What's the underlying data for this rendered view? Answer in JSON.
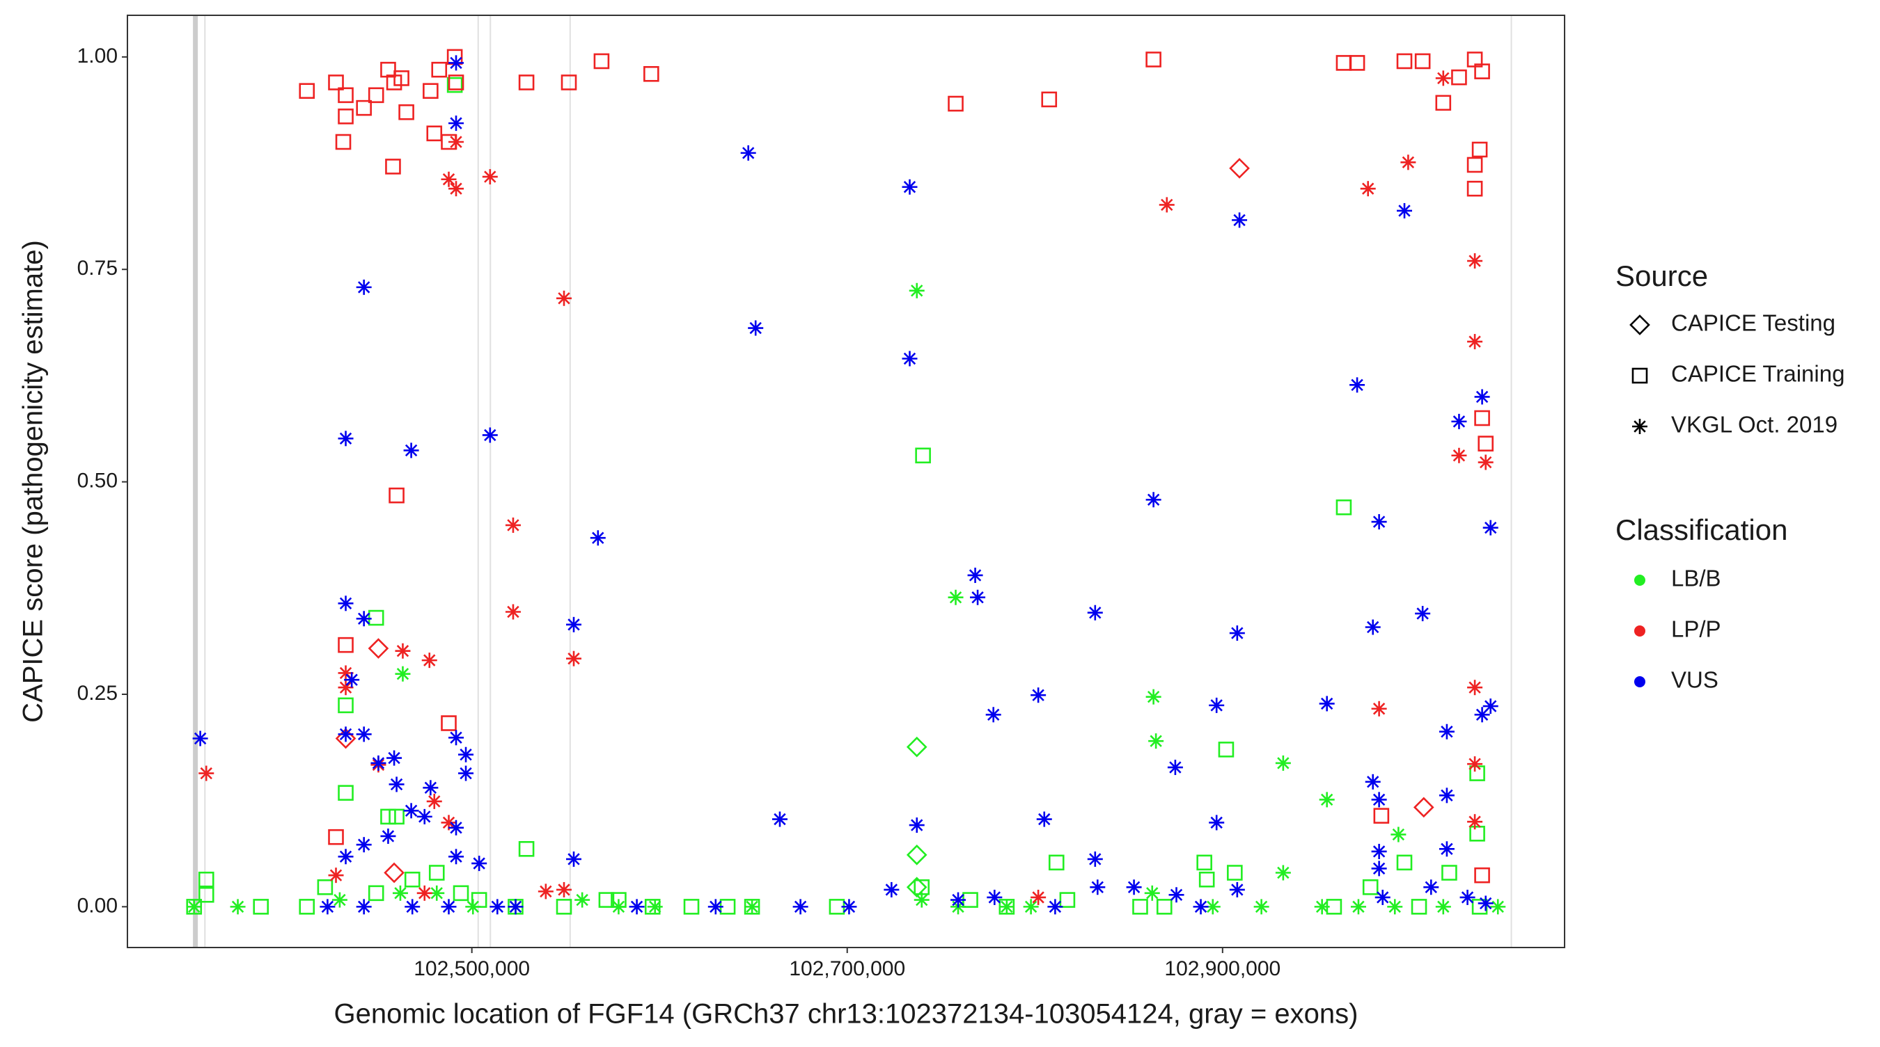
{
  "chart_data": {
    "type": "scatter",
    "y_label": "CAPICE score (pathogenicity estimate)",
    "x_label": "Genomic location of FGF14 (GRCh37 chr13:102372134-103054124, gray = exons)",
    "xlim": [
      102316480,
      103082230
    ],
    "ylim": [
      -0.048,
      1.049
    ],
    "xticks": [
      {
        "value": 102500000,
        "label": "102,500,000"
      },
      {
        "value": 102700000,
        "label": "102,700,000"
      },
      {
        "value": 102900000,
        "label": "102,900,000"
      }
    ],
    "yticks": [
      {
        "value": 0,
        "label": "0.00"
      },
      {
        "value": 0.25,
        "label": "0.25"
      },
      {
        "value": 0.5,
        "label": "0.50"
      },
      {
        "value": 0.75,
        "label": "0.75"
      },
      {
        "value": 1,
        "label": "1.00"
      }
    ],
    "exons": [
      [
        102351400,
        102354000
      ],
      [
        102357400,
        102358000
      ],
      [
        102503000,
        102503600
      ],
      [
        102509500,
        102510100
      ],
      [
        102552000,
        102552600
      ],
      [
        103053500,
        103054124
      ]
    ],
    "exon_color": "#cccccc",
    "source_title": "Source",
    "sources": [
      {
        "name": "CAPICE Testing",
        "shape": "diamond"
      },
      {
        "name": "CAPICE Training",
        "shape": "square"
      },
      {
        "name": "VKGL Oct. 2019",
        "shape": "asterisk"
      }
    ],
    "series_title": "Classification",
    "series": [
      {
        "name": "LB/B",
        "color": "#22ee22",
        "by_source": [
          {
            "x": [
              102737100,
              102737100,
              102737100
            ],
            "values": [
              0.188,
              0.061,
              0.023
            ]
          },
          {
            "x": [
              102449000,
              102432800,
              102432800,
              102455400,
              102459900,
              102740400,
              102964600,
              102901900,
              103035700,
              103035700,
              102890300,
              102811500,
              102996900,
              102529100,
              102490900,
              102352000,
              102358500,
              102358500,
              102387600,
              102412100,
              102421800,
              102449000,
              102468300,
              102481300,
              102494200,
              102503900,
              102523300,
              102549100,
              102571700,
              102578200,
              102596300,
              102617000,
              102636300,
              102649300,
              102694500,
              102739700,
              102765600,
              102785000,
              102817300,
              102856100,
              102869000,
              102891600,
              102906500,
              102959400,
              102978800,
              103004700,
              103020800,
              103037000
            ],
            "values": [
              0.34,
              0.237,
              0.134,
              0.106,
              0.106,
              0.531,
              0.47,
              0.185,
              0.157,
              0.086,
              0.052,
              0.052,
              0.052,
              0.068,
              0.967,
              0,
              0.032,
              0.014,
              0,
              0,
              0.023,
              0.016,
              0.032,
              0.04,
              0.016,
              0.008,
              0,
              0,
              0.008,
              0.008,
              0,
              0,
              0,
              0,
              0,
              0.023,
              0.008,
              0,
              0.008,
              0,
              0,
              0.032,
              0.04,
              0,
              0.023,
              0,
              0.04,
              0
            ]
          },
          {
            "x": [
              102737100,
              102757800,
              102863200,
              102864500,
              102932300,
              102955600,
              102993700,
              102463200,
              102932300,
              102352000,
              102375300,
              102429600,
              102461900,
              102481300,
              102500600,
              102523300,
              102558800,
              102578200,
              102597600,
              102649300,
              102739700,
              102759100,
              102785000,
              102797900,
              102862500,
              102894800,
              102920700,
              102953000,
              102972400,
              102991800,
              103017600,
              103046700
            ],
            "values": [
              0.725,
              0.364,
              0.247,
              0.195,
              0.169,
              0.126,
              0.085,
              0.274,
              0.04,
              0,
              0,
              0.008,
              0.016,
              0.016,
              0,
              0,
              0.008,
              0,
              0,
              0,
              0.008,
              0,
              0,
              0,
              0.016,
              0,
              0,
              0,
              0,
              0,
              0,
              0
            ]
          }
        ]
      },
      {
        "name": "LP/P",
        "color": "#ee2222",
        "by_source": [
          {
            "x": [
              102450200,
              102909000,
              102432800,
              103007200,
              102458600
            ],
            "values": [
              0.304,
              0.869,
              0.198,
              0.117,
              0.04
            ]
          },
          {
            "x": [
              102412100,
              102427600,
              102432800,
              102432800,
              102442500,
              102431500,
              102449000,
              102455400,
              102458600,
              102462500,
              102465100,
              102478000,
              102480000,
              102482600,
              102490900,
              102491600,
              102487700,
              102529100,
              102551700,
              102569100,
              102595600,
              102757800,
              102807600,
              102863200,
              102964600,
              102971700,
              102996900,
              103006600,
              103017600,
              103026000,
              103034400,
              103038300,
              103034400,
              103037000,
              103034400,
              103038300,
              103040200,
              102458000,
              102459900,
              102487700,
              102432800,
              102427600,
              103038300,
              102984600
            ],
            "values": [
              0.96,
              0.97,
              0.955,
              0.93,
              0.94,
              0.9,
              0.955,
              0.985,
              0.97,
              0.975,
              0.935,
              0.96,
              0.91,
              0.985,
              1.0,
              0.97,
              0.9,
              0.97,
              0.97,
              0.995,
              0.98,
              0.945,
              0.95,
              0.997,
              0.993,
              0.993,
              0.995,
              0.995,
              0.946,
              0.976,
              0.997,
              0.983,
              0.873,
              0.891,
              0.845,
              0.575,
              0.545,
              0.871,
              0.484,
              0.216,
              0.308,
              0.082,
              0.037,
              0.107
            ]
          },
          {
            "x": [
              102358500,
              102487700,
              102491600,
              102491600,
              102509700,
              102522000,
              102522000,
              102549100,
              102554300,
              102463200,
              102477400,
              102450200,
              102432800,
              102432800,
              102480000,
              102487700,
              102870300,
              102977500,
              102983400,
              102998900,
              103026000,
              103034400,
              103034400,
              103040200,
              103034400,
              103034400,
              103034400,
              103017600,
              102539400,
              102549100,
              102801800,
              102427600,
              102474800
            ],
            "values": [
              0.157,
              0.856,
              0.845,
              0.9,
              0.859,
              0.449,
              0.347,
              0.716,
              0.292,
              0.301,
              0.29,
              0.167,
              0.275,
              0.258,
              0.124,
              0.099,
              0.826,
              0.845,
              0.233,
              0.876,
              0.531,
              0.76,
              0.665,
              0.523,
              0.258,
              0.168,
              0.1,
              0.975,
              0.018,
              0.02,
              0.011,
              0.037,
              0.016
            ]
          }
        ]
      },
      {
        "name": "VUS",
        "color": "#0000ee",
        "by_source": [
          {
            "x": [],
            "values": []
          },
          {
            "x": [],
            "values": []
          },
          {
            "x": [
              102355300,
              102442500,
              102432800,
              102467700,
              102509700,
              102491600,
              102491600,
              102647300,
              102651200,
              102733300,
              102733300,
              102567200,
              102554300,
              102432800,
              102442500,
              102436000,
              102432800,
              102442500,
              102458600,
              102450200,
              102459900,
              102478000,
              102491600,
              102496800,
              102496800,
              102474800,
              102467700,
              102442500,
              102432800,
              102455400,
              102491600,
              102491600,
              102503900,
              102554300,
              102664100,
              102737100,
              102768200,
              102769500,
              102777900,
              102801800,
              102805000,
              102832100,
              102832100,
              102863200,
              102874800,
              102896800,
              102896800,
              102907800,
              102909000,
              102955600,
              102971700,
              102983400,
              102980100,
              102980100,
              102983400,
              102996900,
              103006600,
              103019500,
              103038300,
              103026000,
              103042800,
              103042800,
              103038300,
              103019500,
              103019500,
              102983400,
              102983400,
              102423100,
              102442500,
              102468300,
              102487700,
              102513600,
              102523300,
              102587900,
              102629900,
              102675100,
              102701000,
              102723600,
              102759100,
              102778500,
              102810800,
              102833400,
              102852800,
              102875400,
              102888400,
              102907800,
              102985300,
              103011100,
              103030500,
              103040200
            ],
            "values": [
              0.198,
              0.729,
              0.551,
              0.537,
              0.555,
              0.922,
              0.993,
              0.887,
              0.681,
              0.847,
              0.645,
              0.434,
              0.332,
              0.357,
              0.339,
              0.267,
              0.203,
              0.203,
              0.175,
              0.169,
              0.144,
              0.14,
              0.199,
              0.179,
              0.157,
              0.106,
              0.113,
              0.073,
              0.059,
              0.083,
              0.093,
              0.059,
              0.051,
              0.056,
              0.103,
              0.096,
              0.39,
              0.364,
              0.226,
              0.249,
              0.103,
              0.346,
              0.056,
              0.479,
              0.164,
              0.237,
              0.099,
              0.322,
              0.808,
              0.239,
              0.614,
              0.453,
              0.329,
              0.147,
              0.126,
              0.819,
              0.345,
              0.206,
              0.6,
              0.571,
              0.446,
              0.236,
              0.226,
              0.131,
              0.068,
              0.065,
              0.045,
              0,
              0,
              0,
              0,
              0,
              0,
              0,
              0,
              0,
              0,
              0.02,
              0.008,
              0.011,
              0,
              0.023,
              0.023,
              0.014,
              0,
              0.02,
              0.011,
              0.023,
              0.011,
              0.004
            ]
          }
        ]
      }
    ]
  }
}
